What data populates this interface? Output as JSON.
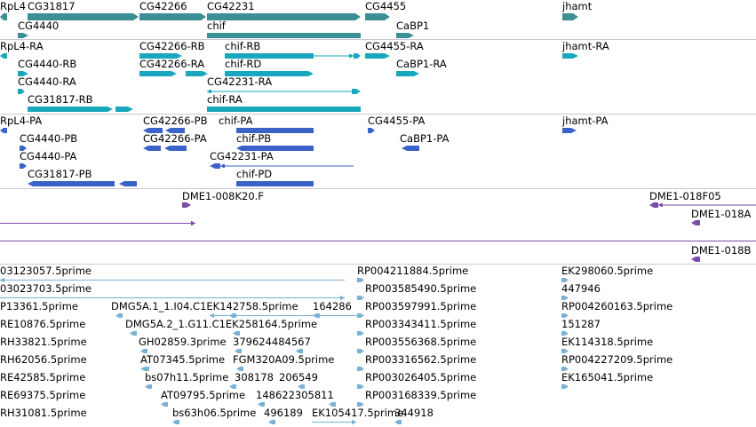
{
  "colors": {
    "gene": "#3b8f95",
    "mrna": "#19a7bd",
    "protein": "#3a62c8",
    "clone": "#7a4ea8",
    "est": "#7ab1d4",
    "separator": "#c8c8d8"
  },
  "tracks": {
    "genes": {
      "labels": [
        "RpL4",
        "CG31817",
        "CG42266",
        "CG42231",
        "CG4455",
        "jhamt",
        "CG4440",
        "chif",
        "CaBP1"
      ]
    },
    "transcripts": {
      "labels": [
        "RpL4-RA",
        "CG42266-RB",
        "chif-RB",
        "CG4455-RA",
        "jhamt-RA",
        "CG4440-RB",
        "CG42266-RA",
        "chif-RD",
        "CaBP1-RA",
        "CG4440-RA",
        "CG42231-RA",
        "CG31817-RB",
        "chif-RA"
      ]
    },
    "proteins": {
      "labels": [
        "RpL4-PA",
        "CG42266-PB",
        "chif-PA",
        "CG4455-PA",
        "jhamt-PA",
        "CG4440-PB",
        "CG42266-PA",
        "chif-PB",
        "CaBP1-PA",
        "CG4440-PA",
        "CG42231-PA",
        "CG31817-PB",
        "chif-PD"
      ]
    },
    "clones": {
      "labels": [
        "DME1-008K20.F",
        "DME1-018F05",
        "DME1-018A",
        "DME1-018B"
      ]
    },
    "ests": {
      "labels": [
        "03123057.5prime",
        "RP004211884.5prime",
        "EK298060.5prime",
        "03023703.5prime",
        "RP003585490.5prime",
        "447946",
        "P13361.5prime",
        "DMG5A.1_1.I04.C1EK142758.5prime",
        "164286",
        "RP003597991.5prime",
        "RP004260163.5prime",
        "RE10876.5prime",
        "DMG5A.2_1.G11.C1EK258164.5prime",
        "RP003343411.5prime",
        "151287",
        "RH33821.5prime",
        "GH02859.3prime",
        "379624484567",
        "RP003556368.5prime",
        "EK114318.5prime",
        "RH62056.5prime",
        "AT07345.5prime",
        "FGM320A09.5prime",
        "RP003316562.5prime",
        "RP004227209.5prime",
        "RE42585.5prime",
        "bs07h11.5prime",
        "308178",
        "206549",
        "RP003026405.5prime",
        "EK165041.5prime",
        "RE69375.5prime",
        "AT09795.5prime",
        "148622305811",
        "RP003168339.5prime",
        "RH31081.5prime",
        "bs63h06.5prime",
        "496189",
        "EK105417.5prime",
        "344918"
      ]
    }
  }
}
